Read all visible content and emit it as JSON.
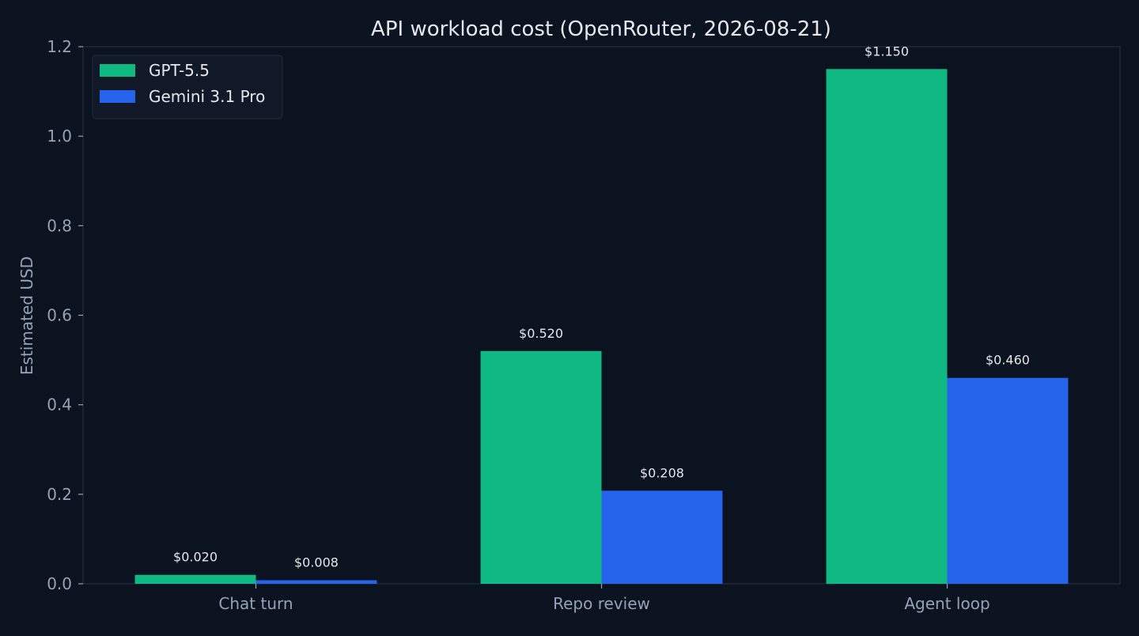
{
  "chart_data": {
    "type": "bar",
    "title": "API workload cost (OpenRouter, 2026-08-21)",
    "xlabel": "",
    "ylabel": "Estimated USD",
    "categories": [
      "Chat turn",
      "Repo review",
      "Agent loop"
    ],
    "series": [
      {
        "name": "GPT-5.5",
        "color": "#10b981",
        "values": [
          0.02,
          0.52,
          1.15
        ],
        "labels": [
          "$0.020",
          "$0.520",
          "$1.150"
        ]
      },
      {
        "name": "Gemini 3.1 Pro",
        "color": "#2563eb",
        "values": [
          0.008,
          0.208,
          0.46
        ],
        "labels": [
          "$0.008",
          "$0.208",
          "$0.460"
        ]
      }
    ],
    "ylim": [
      0,
      1.2
    ],
    "yticks": [
      "0.0",
      "0.2",
      "0.4",
      "0.6",
      "0.8",
      "1.0",
      "1.2"
    ],
    "grid": false,
    "legend_position": "top-left"
  },
  "theme": {
    "background": "#0b1220",
    "axis_color": "#1e293b",
    "tick_label_color": "#94a3b8",
    "title_color": "#e5e7eb",
    "value_label_color": "#e5e7eb",
    "legend_background": "#111827"
  }
}
